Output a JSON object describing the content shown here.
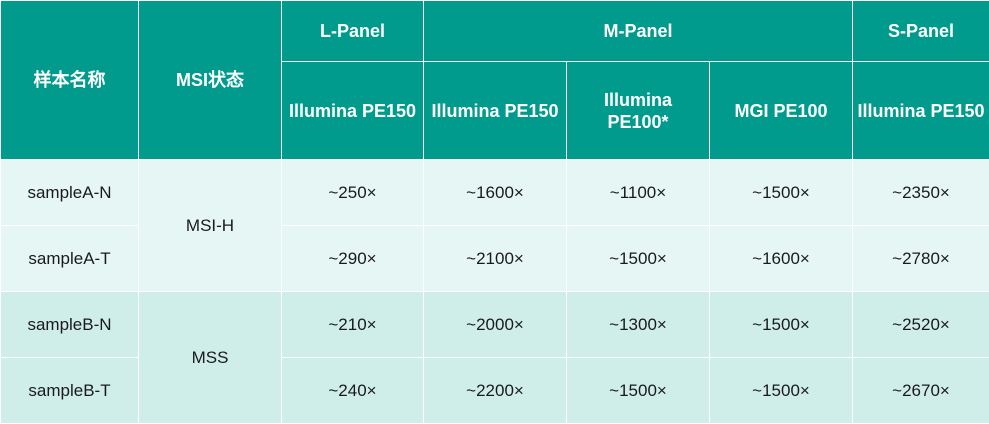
{
  "header": {
    "sample_name": "样本名称",
    "msi_status": "MSI状态",
    "panels": [
      {
        "label": "L-Panel"
      },
      {
        "label": "M-Panel"
      },
      {
        "label": "S-Panel"
      }
    ],
    "platforms": [
      {
        "label": "Illumina PE150"
      },
      {
        "label": "Illumina PE150"
      },
      {
        "label": "Illumina PE100*"
      },
      {
        "label": "MGI PE100"
      },
      {
        "label": "Illumina PE150"
      }
    ]
  },
  "groups": [
    {
      "msi": "MSI-H"
    },
    {
      "msi": "MSS"
    }
  ],
  "rows": [
    {
      "sample": "sampleA-N",
      "values": [
        "~250×",
        "~1600×",
        "~1100×",
        "~1500×",
        "~2350×"
      ]
    },
    {
      "sample": "sampleA-T",
      "values": [
        "~290×",
        "~2100×",
        "~1500×",
        "~1600×",
        "~2780×"
      ]
    },
    {
      "sample": "sampleB-N",
      "values": [
        "~210×",
        "~2000×",
        "~1300×",
        "~1500×",
        "~2520×"
      ]
    },
    {
      "sample": "sampleB-T",
      "values": [
        "~240×",
        "~2200×",
        "~1500×",
        "~1500×",
        "~2670×"
      ]
    }
  ]
}
